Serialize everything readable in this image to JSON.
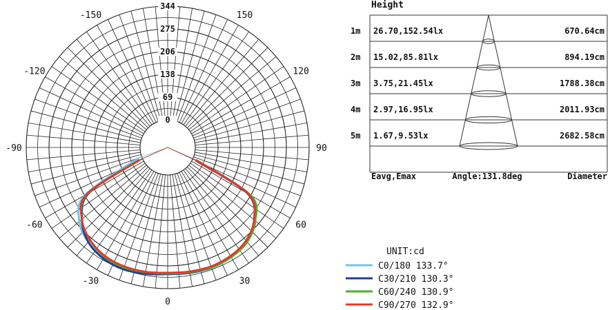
{
  "chart_data": [
    {
      "type": "polar",
      "title": "",
      "grid": true,
      "radial_ticks": [
        "0",
        "69",
        "138",
        "206",
        "275",
        "344"
      ],
      "radial_max": 344,
      "angle_labels": [
        "0",
        "30",
        "60",
        "90",
        "120",
        "150",
        "-150",
        "-120",
        "-90",
        "-60",
        "-30"
      ],
      "unit_label": "UNIT:cd",
      "series": [
        {
          "name": "C0/180 133.7°",
          "color": "#6ec6ea",
          "angles": [
            -70,
            -60,
            -50,
            -40,
            -30,
            -20,
            -10,
            0,
            10,
            20,
            30,
            40,
            50,
            60,
            66
          ],
          "values": [
            10,
            205,
            265,
            290,
            302,
            306,
            303,
            300,
            302,
            305,
            300,
            290,
            262,
            205,
            10
          ]
        },
        {
          "name": "C30/210 130.3°",
          "color": "#1f3f9a",
          "angles": [
            -66,
            -60,
            -50,
            -40,
            -30,
            -20,
            -10,
            0,
            10,
            20,
            30,
            40,
            50,
            60,
            65
          ],
          "values": [
            10,
            190,
            255,
            290,
            305,
            309,
            305,
            300,
            302,
            303,
            298,
            287,
            258,
            195,
            10
          ]
        },
        {
          "name": "C60/240 130.9°",
          "color": "#4caf2c",
          "angles": [
            -66,
            -60,
            -50,
            -40,
            -30,
            -20,
            -10,
            0,
            10,
            20,
            30,
            40,
            50,
            60,
            66
          ],
          "values": [
            10,
            195,
            255,
            282,
            298,
            303,
            300,
            298,
            300,
            303,
            300,
            290,
            262,
            205,
            10
          ]
        },
        {
          "name": "C90/270 132.9°",
          "color": "#e03a2a",
          "angles": [
            -66,
            -60,
            -50,
            -40,
            -30,
            -20,
            -10,
            0,
            10,
            20,
            30,
            40,
            50,
            60,
            66
          ],
          "values": [
            10,
            198,
            255,
            282,
            296,
            300,
            299,
            296,
            298,
            300,
            296,
            285,
            257,
            198,
            10
          ]
        }
      ]
    },
    {
      "type": "table",
      "header": "Height",
      "rows": [
        {
          "height": "1m",
          "values": "26.70,152.54lx",
          "diameter": "670.64cm"
        },
        {
          "height": "2m",
          "values": "15.02,85.81lx",
          "diameter": "894.19cm"
        },
        {
          "height": "3m",
          "values": "3.75,21.45lx",
          "diameter": "1788.38cm"
        },
        {
          "height": "4m",
          "values": "2.97,16.95lx",
          "diameter": "2011.93cm"
        },
        {
          "height": "5m",
          "values": "1.67,9.53lx",
          "diameter": "2682.58cm"
        }
      ],
      "footer": {
        "left": "Eavg,Emax",
        "middle": "Angle:131.8deg",
        "right": "Diameter"
      }
    }
  ]
}
